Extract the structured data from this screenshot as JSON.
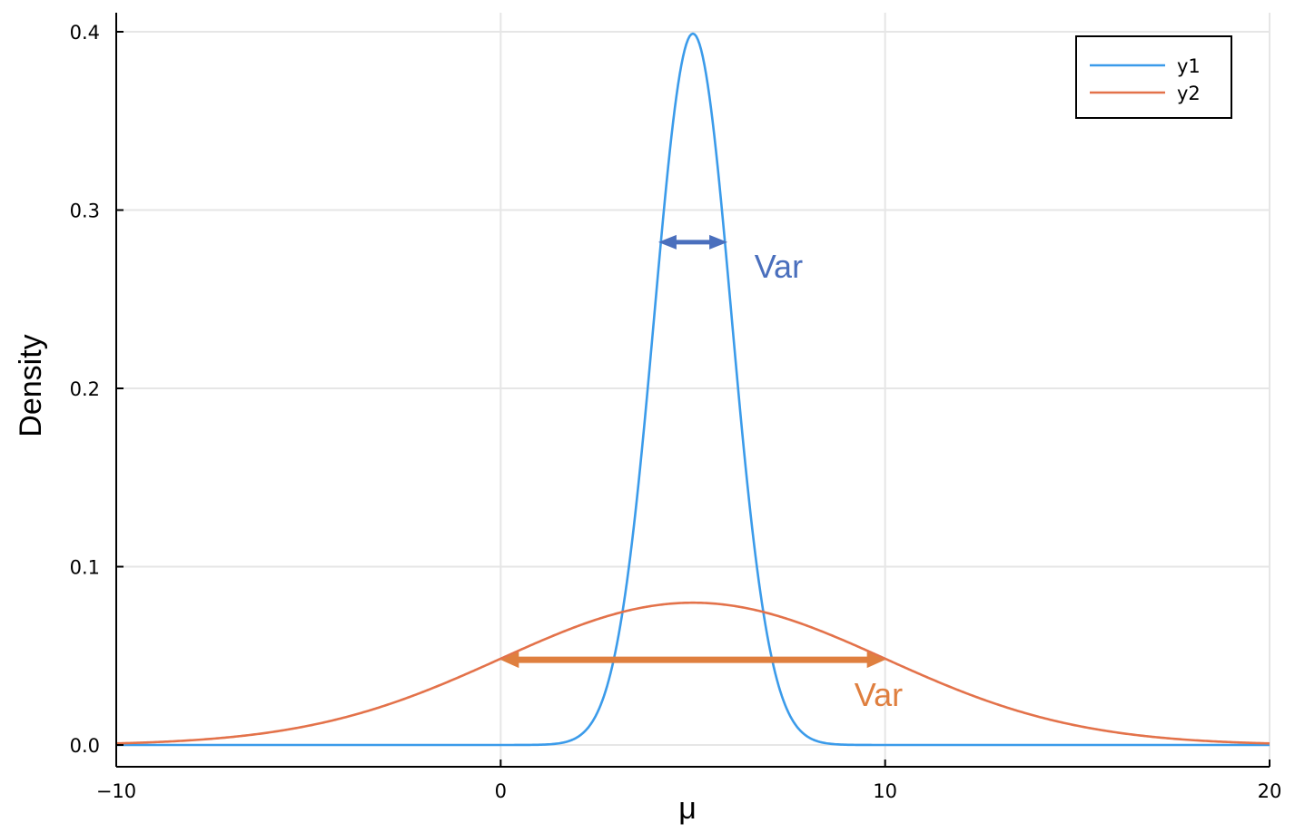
{
  "colors": {
    "y1": "#3b9bea",
    "y2": "#e3724a",
    "annotation_y1": "#4a6fbd",
    "annotation_y2": "#df7f3f",
    "grid": "#e6e6e6",
    "axis": "#000000"
  },
  "chart_data": {
    "type": "line",
    "title": "",
    "xlabel": "μ",
    "ylabel": "Density",
    "xlim": [
      -10,
      20
    ],
    "ylim": [
      0,
      0.41
    ],
    "grid": true,
    "legend_position": "top-right",
    "x_ticks": [
      -10,
      0,
      10,
      20
    ],
    "x_tick_labels": [
      "−10",
      "0",
      "10",
      "20"
    ],
    "y_ticks": [
      0.0,
      0.1,
      0.2,
      0.3,
      0.4
    ],
    "y_tick_labels": [
      "0.0",
      "0.1",
      "0.2",
      "0.3",
      "0.4"
    ],
    "series": [
      {
        "name": "y1",
        "color": "#3b9bea",
        "distribution": "normal",
        "mean": 5,
        "sd": 1
      },
      {
        "name": "y2",
        "color": "#e3724a",
        "distribution": "normal",
        "mean": 5,
        "sd": 5
      }
    ],
    "annotations": [
      {
        "text": "Var",
        "series": "y1",
        "color": "#4a6fbd",
        "arrow_x": [
          4.1,
          5.9
        ],
        "arrow_y": 0.282,
        "label_x": 6.6,
        "label_y": 0.262
      },
      {
        "text": "Var",
        "series": "y2",
        "color": "#df7f3f",
        "arrow_x": [
          0,
          10
        ],
        "arrow_y": 0.0478,
        "label_x": 9.2,
        "label_y": 0.022
      }
    ]
  }
}
